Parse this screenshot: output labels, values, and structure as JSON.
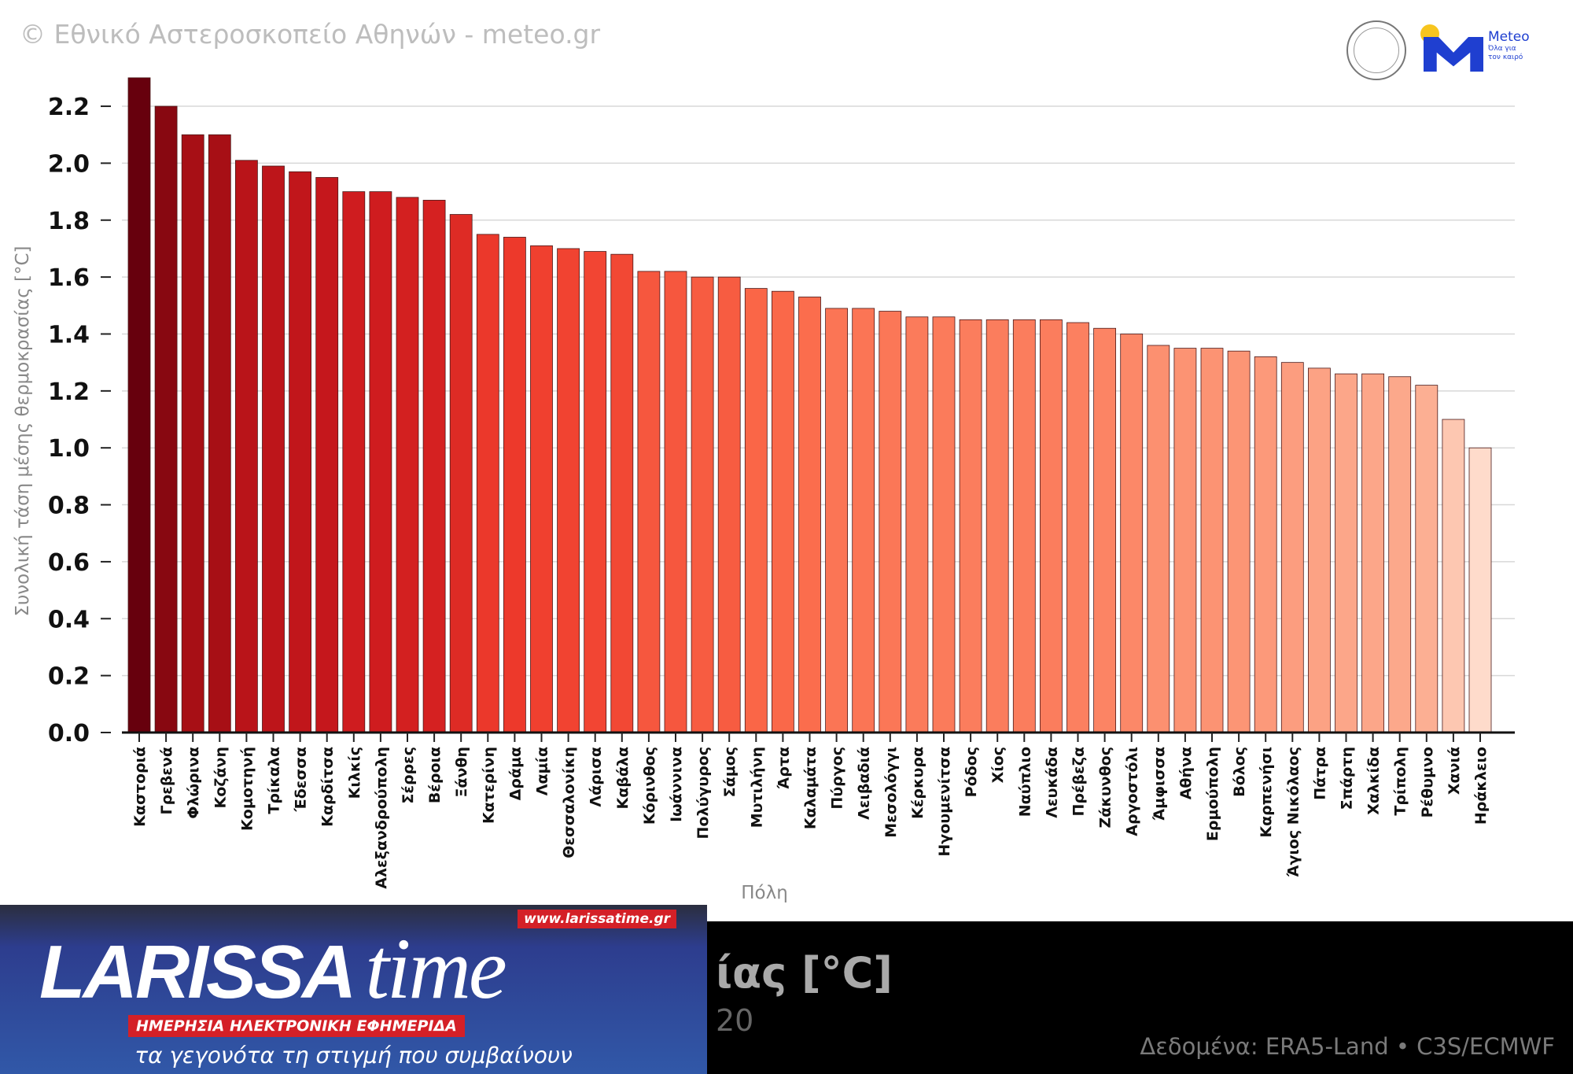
{
  "header": {
    "copyright": "© Εθνικό Αστεροσκοπείο Αθηνών - meteo.gr"
  },
  "logos": {
    "observatory": "Εθνικό Αστεροσκοπείο Αθηνών - National Observatory of Athens",
    "meteo_name": "Meteo",
    "meteo_tagline_1": "Όλα για",
    "meteo_tagline_2": "τον καιρό"
  },
  "footer": {
    "title_fragment": "ίας [°C]",
    "subtitle_fragment": "20",
    "source": "Δεδομένα: ERA5-Land • C3S/ECMWF"
  },
  "banner": {
    "logo_main": "LARISSA",
    "logo_time": "time",
    "url": "www.larissatime.gr",
    "strap": "ΗΜΕΡΗΣΙΑ ΗΛΕΚΤΡΟΝΙΚΗ ΕΦΗΜΕΡΙΔΑ",
    "slogan": "τα γεγονότα τη στιγμή που συμβαίνουν"
  },
  "chart_data": {
    "type": "bar",
    "xlabel": "Πόλη",
    "ylabel": "Συνολική τάση μέσης θερμοκρασίας [°C]",
    "ylim": [
      0,
      2.3
    ],
    "yticks": [
      "0.0",
      "0.2",
      "0.4",
      "0.6",
      "0.8",
      "1.0",
      "1.2",
      "1.4",
      "1.6",
      "1.8",
      "2.0",
      "2.2"
    ],
    "grid": true,
    "categories": [
      "Καστοριά",
      "Γρεβενά",
      "Φλώρινα",
      "Κοζάνη",
      "Κομοτηνή",
      "Τρίκαλα",
      "Έδεσσα",
      "Καρδίτσα",
      "Κιλκίς",
      "Αλεξανδρούπολη",
      "Σέρρες",
      "Βέροια",
      "Ξάνθη",
      "Κατερίνη",
      "Δράμα",
      "Λαμία",
      "Θεσσαλονίκη",
      "Λάρισα",
      "Καβάλα",
      "Κόρινθος",
      "Ιωάννινα",
      "Πολύγυρος",
      "Σάμος",
      "Μυτιλήνη",
      "Άρτα",
      "Καλαμάτα",
      "Πύργος",
      "Λειβαδιά",
      "Μεσολόγγι",
      "Κέρκυρα",
      "Ηγουμενίτσα",
      "Ρόδος",
      "Χίος",
      "Ναύπλιο",
      "Λευκάδα",
      "Πρέβεζα",
      "Ζάκυνθος",
      "Αργοστόλι",
      "Άμφισσα",
      "Αθήνα",
      "Ερμούπολη",
      "Βόλος",
      "Καρπενήσι",
      "Άγιος Νικόλαος",
      "Πάτρα",
      "Σπάρτη",
      "Χαλκίδα",
      "Τρίπολη",
      "Ρέθυμνο",
      "Χανιά",
      "Ηράκλειο"
    ],
    "values": [
      2.3,
      2.2,
      2.1,
      2.1,
      2.01,
      1.99,
      1.97,
      1.95,
      1.9,
      1.9,
      1.88,
      1.87,
      1.82,
      1.75,
      1.74,
      1.71,
      1.7,
      1.69,
      1.68,
      1.62,
      1.62,
      1.6,
      1.6,
      1.56,
      1.55,
      1.53,
      1.49,
      1.49,
      1.48,
      1.46,
      1.46,
      1.45,
      1.45,
      1.45,
      1.45,
      1.44,
      1.42,
      1.4,
      1.36,
      1.35,
      1.35,
      1.34,
      1.32,
      1.3,
      1.28,
      1.26,
      1.26,
      1.25,
      1.22,
      1.1,
      1.0
    ],
    "colormap": [
      "#fee0d2",
      "#fcbba1",
      "#fc9272",
      "#fb6a4a",
      "#ef3b2c",
      "#cb181d",
      "#a50f15",
      "#67000d"
    ]
  }
}
